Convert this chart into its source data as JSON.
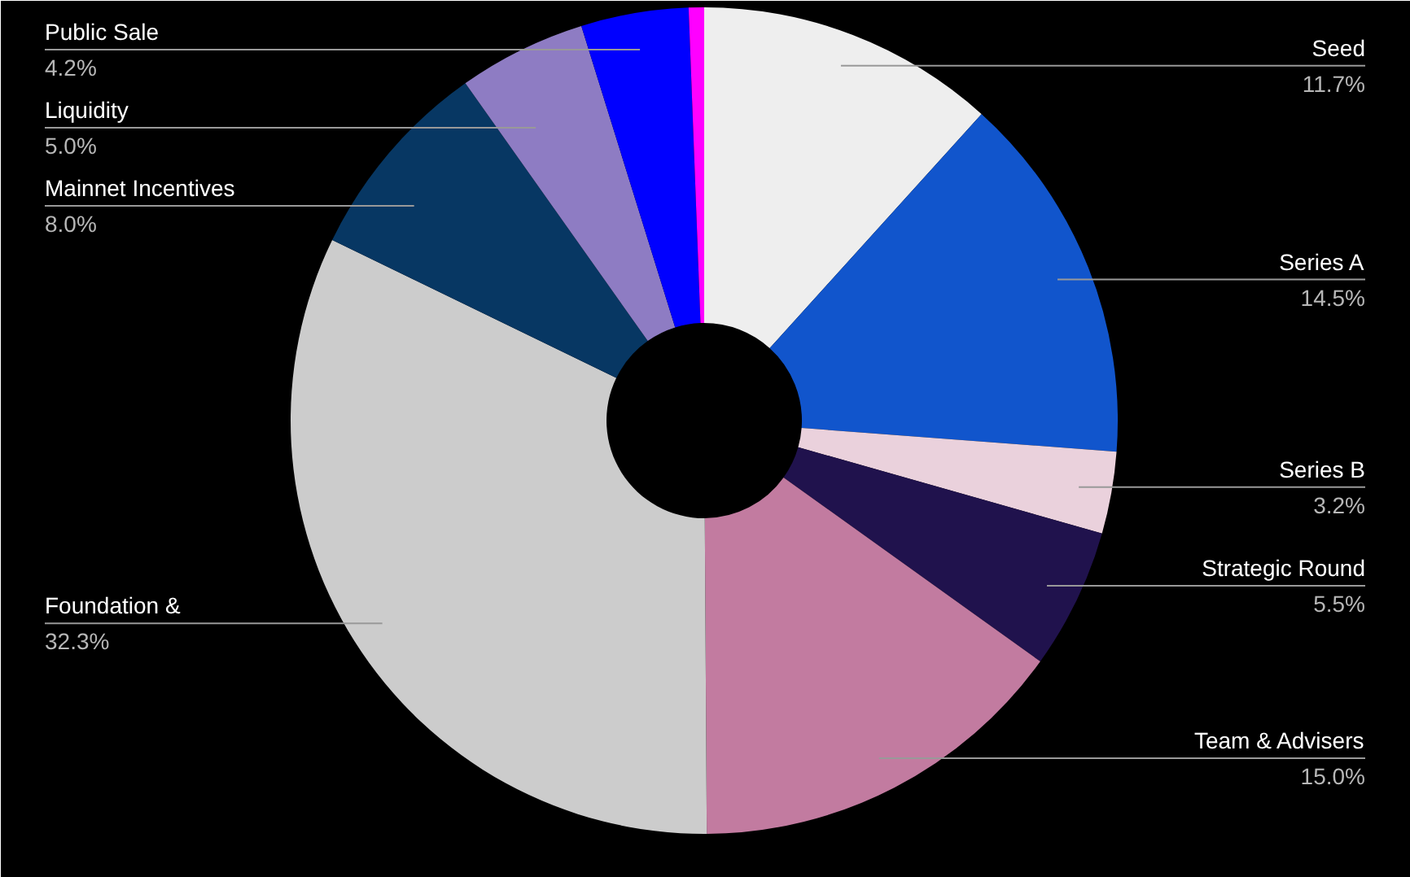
{
  "chart_data": {
    "type": "donut",
    "categories": [
      "Seed",
      "Series A",
      "Series B",
      "Strategic Round",
      "Team & Advisers",
      "Foundation &",
      "Mainnet Incentives",
      "Liquidity",
      "Public Sale",
      null
    ],
    "values": [
      11.7,
      14.5,
      3.2,
      5.5,
      15.0,
      32.3,
      8.0,
      5.0,
      4.2,
      0.6
    ],
    "value_labels": [
      "11.7%",
      "14.5%",
      "3.2%",
      "5.5%",
      "15.0%",
      "32.3%",
      "8.0%",
      "5.0%",
      "4.2%",
      null
    ],
    "colors": [
      "#eeeeee",
      "#1155cc",
      "#ead1dc",
      "#20124d",
      "#c27ba0",
      "#cccccc",
      "#073763",
      "#8e7cc3",
      "#0000ff",
      "#ff00ff"
    ]
  }
}
